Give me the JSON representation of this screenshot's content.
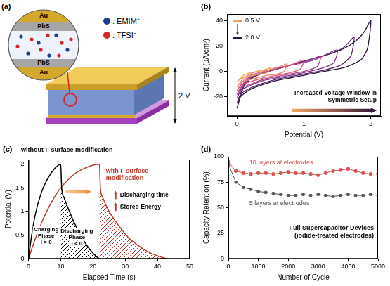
{
  "diagram": {
    "panel_label": "(a)",
    "layers": [
      "Au",
      "PbS",
      "PbS",
      "Au"
    ],
    "ions": [
      {
        "label": ": EMIM⁺",
        "color": "#1f3f8f"
      },
      {
        "label": ": TFSI⁻",
        "color": "#d62728"
      }
    ],
    "voltage": "2 V"
  },
  "chart_data": [
    {
      "panel_label": "(b)",
      "type": "line",
      "x_label": "Potential (V)",
      "y_label": "Current (μA/cm²)",
      "xlim": [
        -0.15,
        2.15
      ],
      "xticks": [
        0,
        1,
        2
      ],
      "ylim": [
        -35,
        45
      ],
      "yticks": [
        -20,
        0,
        20,
        40
      ],
      "grid": false,
      "annotations": [
        "Increased Voltage Window in Symmetric Setup"
      ],
      "series": [
        {
          "name": "0.5 V",
          "color": "#f4a460",
          "x": [
            0,
            0.1,
            0.2,
            0.3,
            0.4,
            0.5,
            0.45,
            0.35,
            0.25,
            0.15,
            0.05,
            0
          ],
          "values": [
            -8,
            -3,
            -1,
            0,
            1,
            3,
            -1,
            -2,
            -3,
            -4,
            -6,
            -8
          ]
        },
        {
          "color": "#ec7f63",
          "x": [
            0,
            0.1,
            0.2,
            0.3,
            0.45,
            0.6,
            0.75,
            0.7,
            0.6,
            0.45,
            0.3,
            0.15,
            0.05,
            0
          ],
          "values": [
            -12,
            -5,
            -2,
            0,
            1,
            3,
            6,
            0,
            -2,
            -3,
            -5,
            -7,
            -9,
            -12
          ]
        },
        {
          "color": "#d8587a",
          "x": [
            0,
            0.1,
            0.2,
            0.4,
            0.6,
            0.8,
            1.0,
            0.95,
            0.8,
            0.6,
            0.4,
            0.2,
            0.05,
            0
          ],
          "values": [
            -15,
            -7,
            -3,
            0,
            3,
            5,
            9,
            2,
            -1,
            -3,
            -5,
            -8,
            -11,
            -15
          ]
        },
        {
          "color": "#b13f88",
          "x": [
            0,
            0.1,
            0.2,
            0.4,
            0.6,
            0.8,
            1.0,
            1.25,
            1.2,
            1.0,
            0.8,
            0.6,
            0.4,
            0.2,
            0.05,
            0
          ],
          "values": [
            -18,
            -9,
            -4,
            -1,
            2,
            5,
            7,
            12,
            4,
            0,
            -2,
            -4,
            -6,
            -10,
            -13,
            -18
          ]
        },
        {
          "color": "#84318c",
          "x": [
            0,
            0.1,
            0.2,
            0.4,
            0.6,
            0.8,
            1.0,
            1.2,
            1.5,
            1.45,
            1.3,
            1.0,
            0.8,
            0.6,
            0.4,
            0.2,
            0.05,
            0
          ],
          "values": [
            -21,
            -10,
            -5,
            -1,
            2,
            5,
            7,
            10,
            17,
            7,
            3,
            -1,
            -3,
            -5,
            -7,
            -11,
            -15,
            -21
          ]
        },
        {
          "color": "#55226f",
          "x": [
            0,
            0.1,
            0.2,
            0.4,
            0.6,
            0.8,
            1.0,
            1.2,
            1.4,
            1.6,
            1.75,
            1.7,
            1.55,
            1.3,
            1.0,
            0.8,
            0.6,
            0.4,
            0.2,
            0.05,
            0
          ],
          "values": [
            -25,
            -11,
            -5,
            -1,
            2,
            5,
            8,
            11,
            14,
            19,
            27,
            12,
            5,
            1,
            -2,
            -4,
            -6,
            -9,
            -13,
            -18,
            -25
          ]
        },
        {
          "name": "2.0 V",
          "color": "#2b1238",
          "x": [
            0,
            0.1,
            0.2,
            0.4,
            0.6,
            0.8,
            1.0,
            1.2,
            1.4,
            1.6,
            1.8,
            1.9,
            2.0,
            1.95,
            1.85,
            1.6,
            1.3,
            1.0,
            0.8,
            0.6,
            0.4,
            0.2,
            0.05,
            0
          ],
          "values": [
            -29,
            -12,
            -6,
            -1,
            2,
            5,
            8,
            11,
            14,
            18,
            25,
            31,
            40,
            18,
            9,
            3,
            0,
            -3,
            -5,
            -7,
            -10,
            -14,
            -20,
            -29
          ]
        }
      ]
    },
    {
      "panel_label": "(c)",
      "type": "line",
      "x_label": "Elapsed Time (s)",
      "y_label": "Potential (V)",
      "xlim": [
        0,
        50
      ],
      "xticks": [
        0,
        10,
        20,
        30,
        40,
        50
      ],
      "ylim": [
        0,
        2.1
      ],
      "yticks": [
        0,
        0.5,
        1,
        1.5,
        2
      ],
      "grid": false,
      "annotations": [
        "Charging Phase",
        "I > 0",
        "Discharging Phase",
        "I < 0",
        "Discharging time",
        "Stored Energy"
      ],
      "series": [
        {
          "name": "without I⁻ surface modification",
          "color": "#000000",
          "x": [
            0,
            1,
            2,
            4,
            6,
            8,
            10,
            10.3,
            11,
            13,
            15,
            17,
            19,
            21,
            22
          ],
          "values": [
            0,
            0.5,
            0.9,
            1.4,
            1.7,
            1.9,
            2.0,
            1.5,
            1.3,
            0.95,
            0.65,
            0.4,
            0.2,
            0.05,
            0
          ]
        },
        {
          "name": "with I⁻ surface modification",
          "color": "#c0392b",
          "x": [
            0,
            2,
            4,
            6,
            8,
            10,
            12,
            14,
            16,
            18,
            20,
            22,
            22.3,
            23,
            25,
            28,
            31,
            34,
            37,
            40,
            43
          ],
          "values": [
            0,
            0.4,
            0.75,
            1.05,
            1.3,
            1.5,
            1.65,
            1.78,
            1.87,
            1.93,
            1.98,
            2.0,
            1.5,
            1.3,
            1.0,
            0.7,
            0.45,
            0.28,
            0.15,
            0.06,
            0
          ]
        }
      ]
    },
    {
      "panel_label": "(d)",
      "type": "line",
      "x_label": "Number of Cycle",
      "y_label": "Capacity Retention (%)",
      "xlim": [
        0,
        5000
      ],
      "xticks": [
        0,
        1000,
        2000,
        3000,
        4000,
        5000
      ],
      "ylim": [
        0,
        100
      ],
      "yticks": [
        0,
        25,
        50,
        75,
        100
      ],
      "grid": false,
      "annotations": [
        "Full Supercapacitor Devices (iodide-treated electrodes)"
      ],
      "series": [
        {
          "name": "10 layers at electrodes",
          "color": "#d9534f",
          "marker": "circle",
          "x": [
            0,
            250,
            500,
            750,
            1000,
            1250,
            1500,
            1750,
            2000,
            2250,
            2500,
            2750,
            3000,
            3250,
            3500,
            3750,
            4000,
            4250,
            4500,
            4750,
            5000
          ],
          "values": [
            95,
            86,
            84,
            83,
            84,
            84,
            83,
            84,
            85,
            84,
            84,
            83,
            82,
            84,
            86,
            87,
            88,
            86,
            84,
            83,
            83
          ]
        },
        {
          "name": "5 layers at electrodes",
          "color": "#555555",
          "marker": "square",
          "x": [
            0,
            250,
            500,
            750,
            1000,
            1250,
            1500,
            1750,
            2000,
            2250,
            2500,
            2750,
            3000,
            3250,
            3500,
            3750,
            4000,
            4250,
            4500,
            4750,
            5000
          ],
          "values": [
            93,
            75,
            70,
            68,
            66,
            65,
            64,
            63,
            62,
            62,
            63,
            62,
            63,
            62,
            61,
            62,
            63,
            62,
            62,
            63,
            62
          ]
        }
      ]
    }
  ]
}
